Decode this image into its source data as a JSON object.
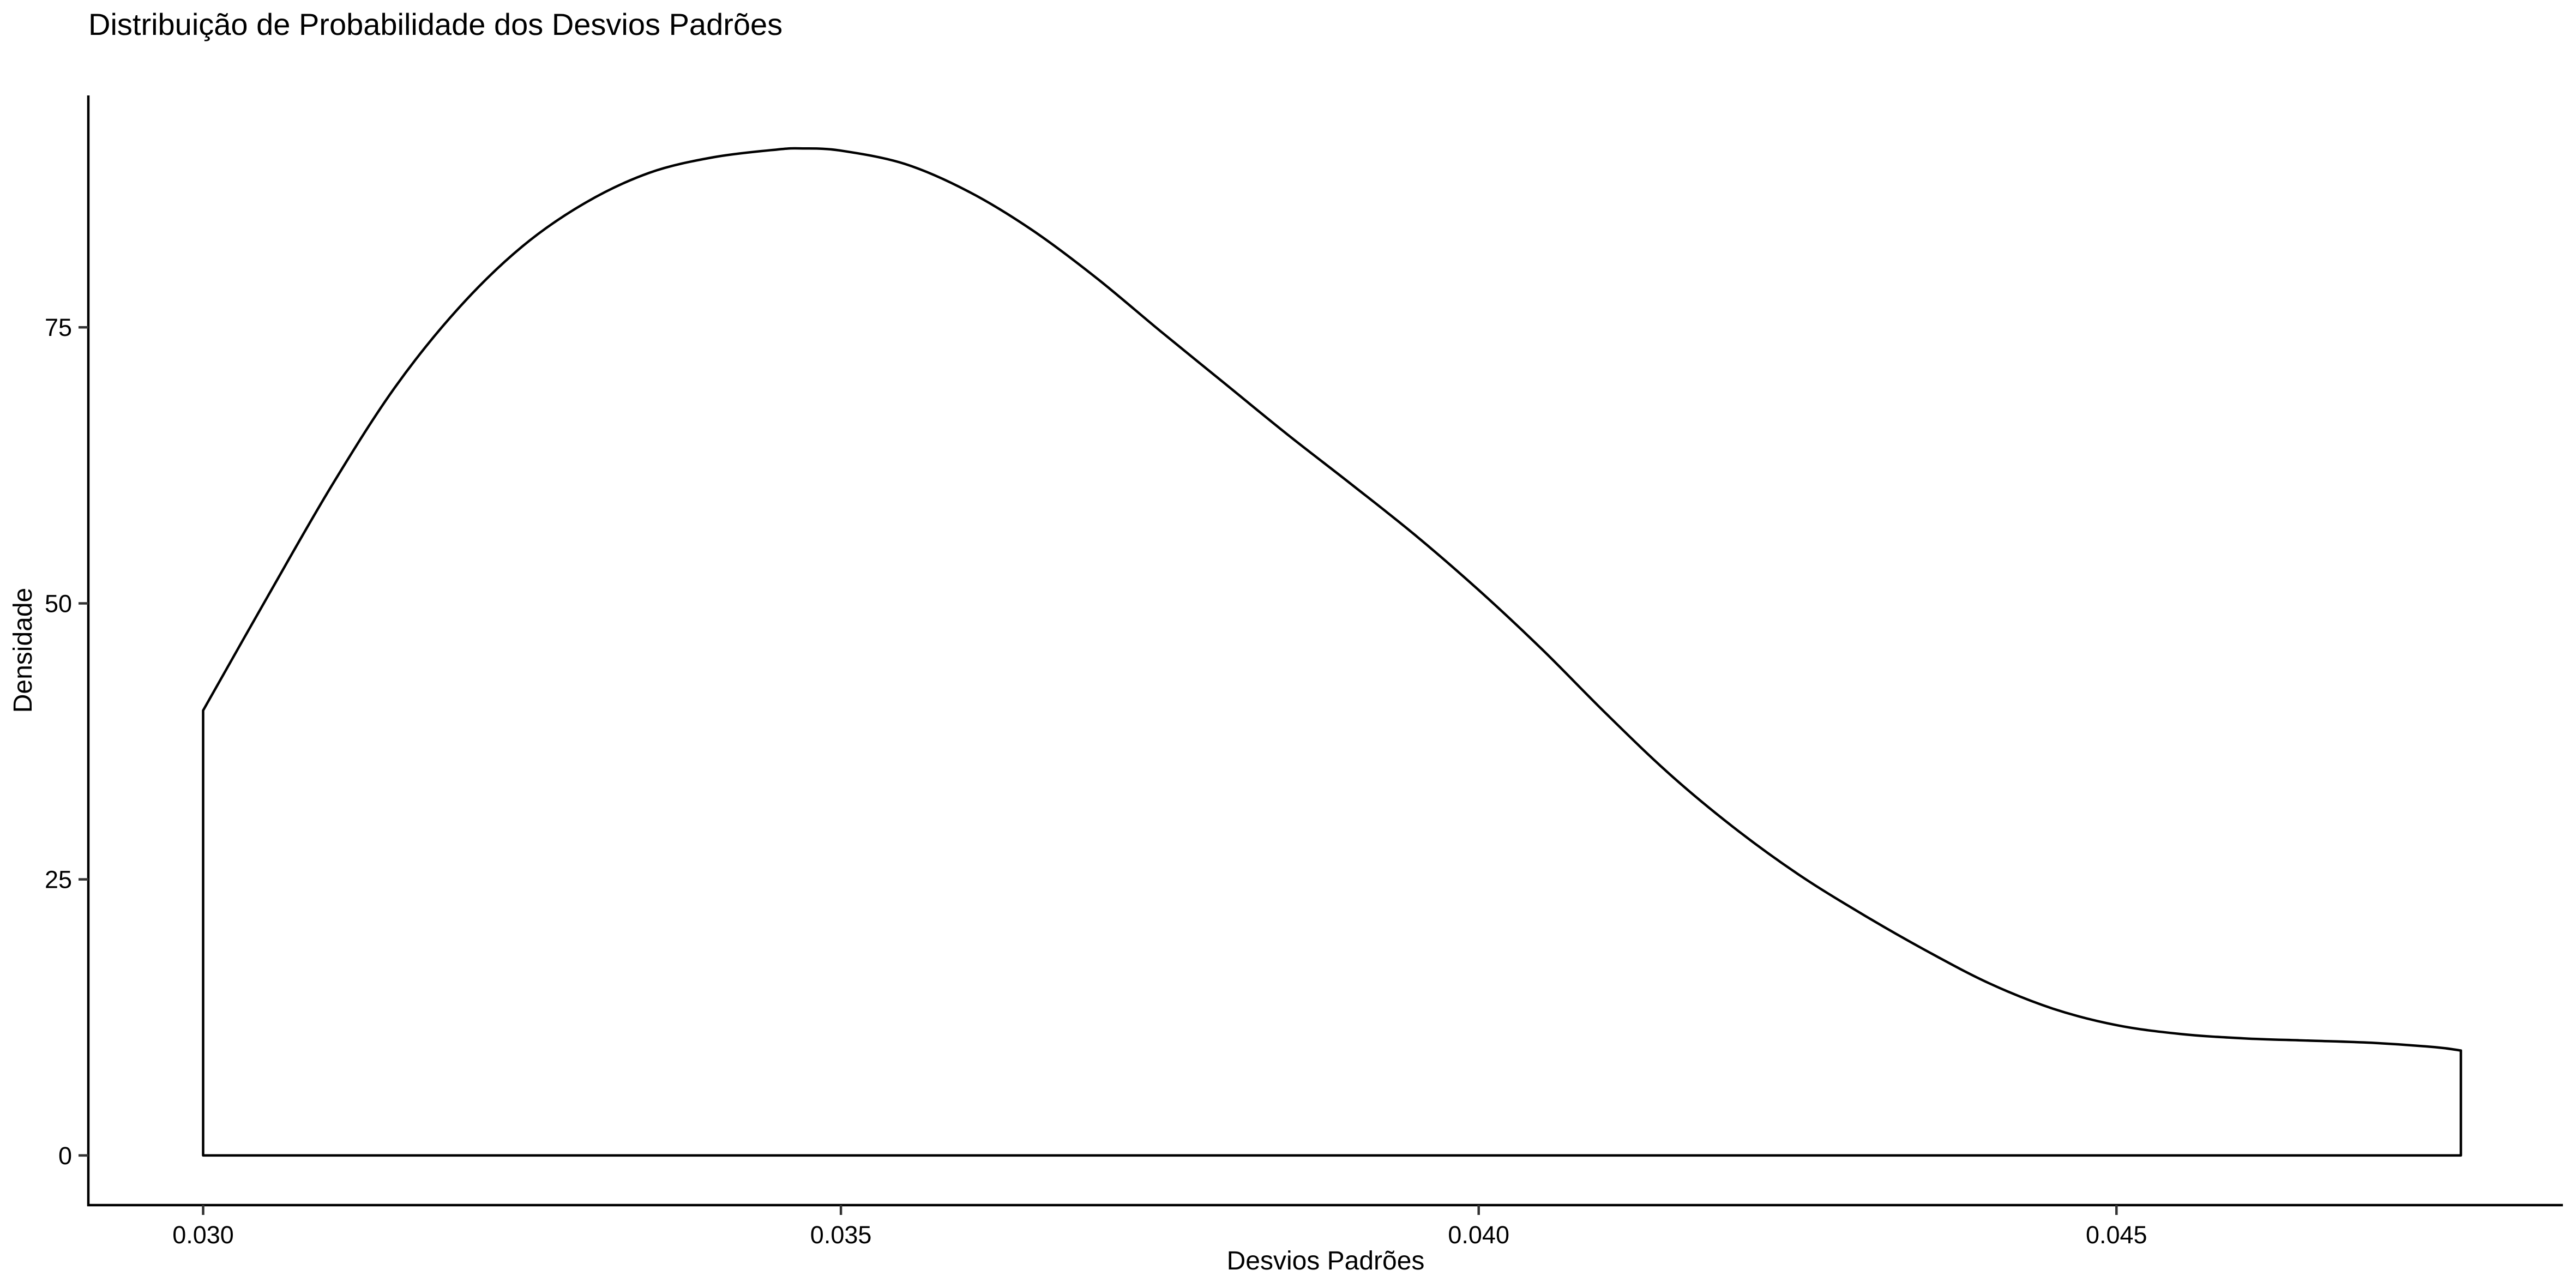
{
  "chart_data": {
    "type": "area",
    "title": "Distribuição de Probabilidade dos Desvios Padrões",
    "xlabel": "Desvios Padrões",
    "ylabel": "Densidade",
    "xlim": [
      0.0291,
      0.0485
    ],
    "ylim": [
      -4.5,
      96
    ],
    "x_ticks": [
      {
        "value": 0.03,
        "label": "0.030"
      },
      {
        "value": 0.035,
        "label": "0.035"
      },
      {
        "value": 0.04,
        "label": "0.040"
      },
      {
        "value": 0.045,
        "label": "0.045"
      }
    ],
    "y_ticks": [
      {
        "value": 0,
        "label": "0"
      },
      {
        "value": 25,
        "label": "25"
      },
      {
        "value": 50,
        "label": "50"
      },
      {
        "value": 75,
        "label": "75"
      }
    ],
    "grid": false,
    "series": [
      {
        "x": [
          0.03,
          0.0305,
          0.031,
          0.0315,
          0.032,
          0.0325,
          0.033,
          0.0335,
          0.034,
          0.0345,
          0.0347,
          0.035,
          0.0355,
          0.036,
          0.0365,
          0.037,
          0.0375,
          0.038,
          0.0385,
          0.039,
          0.0395,
          0.04,
          0.0405,
          0.041,
          0.0415,
          0.042,
          0.0425,
          0.043,
          0.0435,
          0.044,
          0.0445,
          0.045,
          0.0455,
          0.046,
          0.0465,
          0.047,
          0.0475,
          0.0477
        ],
        "y": [
          40.3,
          50.5,
          60.5,
          69.5,
          76.7,
          82.3,
          86.3,
          89.0,
          90.4,
          91.1,
          91.2,
          91.0,
          89.8,
          87.3,
          83.8,
          79.5,
          74.7,
          70.0,
          65.3,
          60.8,
          56.2,
          51.2,
          45.8,
          40.0,
          34.5,
          29.7,
          25.5,
          21.9,
          18.6,
          15.6,
          13.3,
          11.8,
          11.0,
          10.6,
          10.4,
          10.2,
          9.8,
          9.5
        ]
      }
    ]
  }
}
